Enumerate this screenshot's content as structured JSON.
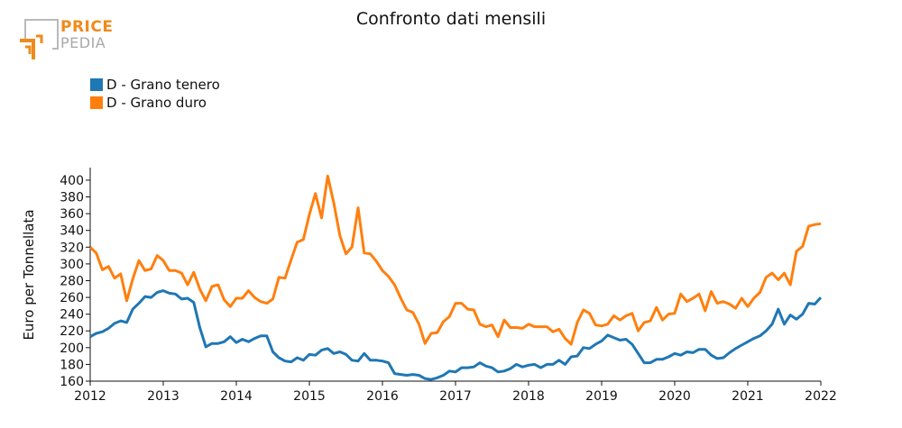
{
  "logo": {
    "line1": "PRICE",
    "line2": "PEDIA"
  },
  "chart_data": {
    "type": "line",
    "title": "Confronto dati mensili",
    "ylabel": "Euro per Tonnellata",
    "xlabel": "",
    "xlim": [
      2012,
      2022
    ],
    "ylim": [
      160,
      415
    ],
    "x_ticks": [
      2012,
      2013,
      2014,
      2015,
      2016,
      2017,
      2018,
      2019,
      2020,
      2021,
      2022
    ],
    "y_ticks": [
      160,
      180,
      200,
      220,
      240,
      260,
      280,
      300,
      320,
      340,
      360,
      380,
      400
    ],
    "legend_position": "top-left",
    "grid": false,
    "x": [
      2012.0,
      2012.083,
      2012.167,
      2012.25,
      2012.333,
      2012.417,
      2012.5,
      2012.583,
      2012.667,
      2012.75,
      2012.833,
      2012.917,
      2013.0,
      2013.083,
      2013.167,
      2013.25,
      2013.333,
      2013.417,
      2013.5,
      2013.583,
      2013.667,
      2013.75,
      2013.833,
      2013.917,
      2014.0,
      2014.083,
      2014.167,
      2014.25,
      2014.333,
      2014.417,
      2014.5,
      2014.583,
      2014.667,
      2014.75,
      2014.833,
      2014.917,
      2015.0,
      2015.083,
      2015.167,
      2015.25,
      2015.333,
      2015.417,
      2015.5,
      2015.583,
      2015.667,
      2015.75,
      2015.833,
      2015.917,
      2016.0,
      2016.083,
      2016.167,
      2016.25,
      2016.333,
      2016.417,
      2016.5,
      2016.583,
      2016.667,
      2016.75,
      2016.833,
      2016.917,
      2017.0,
      2017.083,
      2017.167,
      2017.25,
      2017.333,
      2017.417,
      2017.5,
      2017.583,
      2017.667,
      2017.75,
      2017.833,
      2017.917,
      2018.0,
      2018.083,
      2018.167,
      2018.25,
      2018.333,
      2018.417,
      2018.5,
      2018.583,
      2018.667,
      2018.75,
      2018.833,
      2018.917,
      2019.0,
      2019.083,
      2019.167,
      2019.25,
      2019.333,
      2019.417,
      2019.5,
      2019.583,
      2019.667,
      2019.75,
      2019.833,
      2019.917,
      2020.0,
      2020.083,
      2020.167,
      2020.25,
      2020.333,
      2020.417,
      2020.5,
      2020.583,
      2020.667,
      2020.75,
      2020.833,
      2020.917,
      2021.0,
      2021.083,
      2021.167,
      2021.25,
      2021.333,
      2021.417,
      2021.5,
      2021.583,
      2021.667,
      2021.75,
      2021.833,
      2021.917,
      2022.0
    ],
    "series": [
      {
        "name": "D - Grano tenero",
        "color": "#1f77b4",
        "values": [
          213,
          217,
          219,
          223,
          229,
          232,
          230,
          246,
          253,
          261,
          260,
          266,
          268,
          265,
          264,
          258,
          259,
          254,
          224,
          201,
          205,
          205,
          207,
          213,
          206,
          210,
          207,
          211,
          214,
          214,
          195,
          188,
          184,
          183,
          188,
          185,
          192,
          191,
          197,
          199,
          193,
          195,
          192,
          185,
          184,
          193,
          185,
          185,
          184,
          182,
          169,
          168,
          167,
          168,
          167,
          163,
          162,
          164,
          167,
          172,
          171,
          176,
          176,
          177,
          182,
          178,
          176,
          171,
          172,
          175,
          180,
          177,
          179,
          180,
          176,
          180,
          180,
          185,
          180,
          189,
          190,
          200,
          199,
          204,
          208,
          215,
          212,
          209,
          210,
          204,
          193,
          182,
          182,
          186,
          186,
          189,
          193,
          191,
          195,
          194,
          198,
          198,
          191,
          187,
          188,
          194,
          199,
          203,
          207,
          211,
          214,
          220,
          228,
          246,
          228,
          239,
          234,
          240,
          253,
          252,
          260
        ]
      },
      {
        "name": "D - Grano duro",
        "color": "#ff7f0e",
        "values": [
          320,
          313,
          293,
          297,
          283,
          288,
          256,
          282,
          304,
          292,
          294,
          310,
          304,
          292,
          292,
          289,
          275,
          290,
          270,
          256,
          273,
          275,
          257,
          249,
          259,
          259,
          268,
          260,
          255,
          253,
          258,
          284,
          283,
          305,
          326,
          329,
          359,
          384,
          355,
          405,
          373,
          334,
          312,
          320,
          367,
          313,
          312,
          303,
          292,
          285,
          275,
          259,
          245,
          242,
          228,
          205,
          217,
          218,
          231,
          237,
          253,
          253,
          246,
          245,
          228,
          225,
          227,
          213,
          233,
          224,
          224,
          223,
          228,
          225,
          225,
          225,
          219,
          222,
          211,
          204,
          230,
          245,
          241,
          227,
          226,
          228,
          238,
          233,
          238,
          241,
          220,
          230,
          232,
          248,
          233,
          240,
          241,
          264,
          255,
          259,
          264,
          244,
          267,
          253,
          255,
          252,
          247,
          259,
          249,
          259,
          266,
          284,
          289,
          281,
          289,
          275,
          315,
          321,
          345,
          347,
          348
        ]
      }
    ]
  }
}
